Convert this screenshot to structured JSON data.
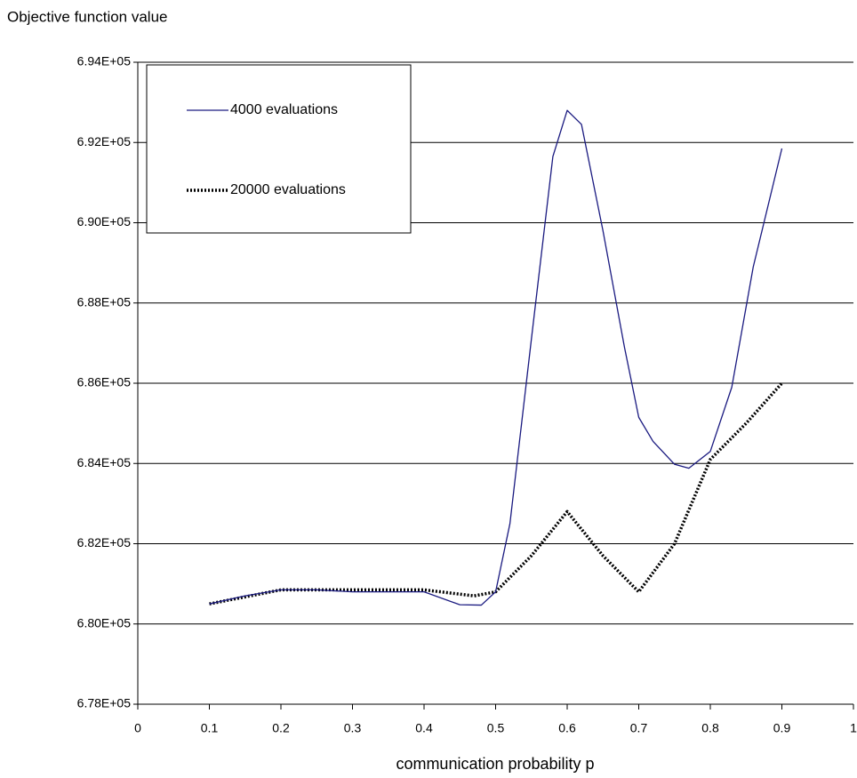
{
  "chart_data": {
    "type": "line",
    "y_label": "Objective function value",
    "x_label": "communication probability p",
    "series": [
      {
        "name": "4000 evaluations",
        "color": "#1a1a80",
        "style": "solid",
        "x": [
          0.1,
          0.15,
          0.2,
          0.25,
          0.3,
          0.35,
          0.4,
          0.45,
          0.48,
          0.5,
          0.52,
          0.55,
          0.58,
          0.6,
          0.62,
          0.65,
          0.68,
          0.7,
          0.72,
          0.75,
          0.77,
          0.8,
          0.83,
          0.86,
          0.9
        ],
        "values": [
          680500,
          680700,
          680850,
          680850,
          680800,
          680800,
          680800,
          680480,
          680470,
          680800,
          682500,
          687100,
          691650,
          692800,
          692450,
          689800,
          686900,
          685150,
          684550,
          683980,
          683880,
          684300,
          685900,
          688900,
          691850
        ]
      },
      {
        "name": "20000 evaluations",
        "color": "#000000",
        "style": "dotted",
        "x": [
          0.1,
          0.2,
          0.3,
          0.4,
          0.47,
          0.5,
          0.55,
          0.6,
          0.65,
          0.7,
          0.75,
          0.8,
          0.85,
          0.9
        ],
        "values": [
          680500,
          680850,
          680850,
          680850,
          680700,
          680800,
          681700,
          682800,
          681700,
          680800,
          682000,
          684100,
          685000,
          686000
        ]
      }
    ],
    "xlim": [
      0,
      1
    ],
    "xticks": [
      0,
      0.1,
      0.2,
      0.3,
      0.4,
      0.5,
      0.6,
      0.7,
      0.8,
      0.9,
      1
    ],
    "ylim": [
      678000,
      694000
    ],
    "yticks": [
      {
        "value": 678000,
        "label": "6.78E+05"
      },
      {
        "value": 680000,
        "label": "6.80E+05"
      },
      {
        "value": 682000,
        "label": "6.82E+05"
      },
      {
        "value": 684000,
        "label": "6.84E+05"
      },
      {
        "value": 686000,
        "label": "6.86E+05"
      },
      {
        "value": 688000,
        "label": "6.88E+05"
      },
      {
        "value": 690000,
        "label": "6.90E+05"
      },
      {
        "value": 692000,
        "label": "6.92E+05"
      },
      {
        "value": 694000,
        "label": "6.94E+05"
      }
    ],
    "grid": true,
    "legend": "top-left"
  }
}
